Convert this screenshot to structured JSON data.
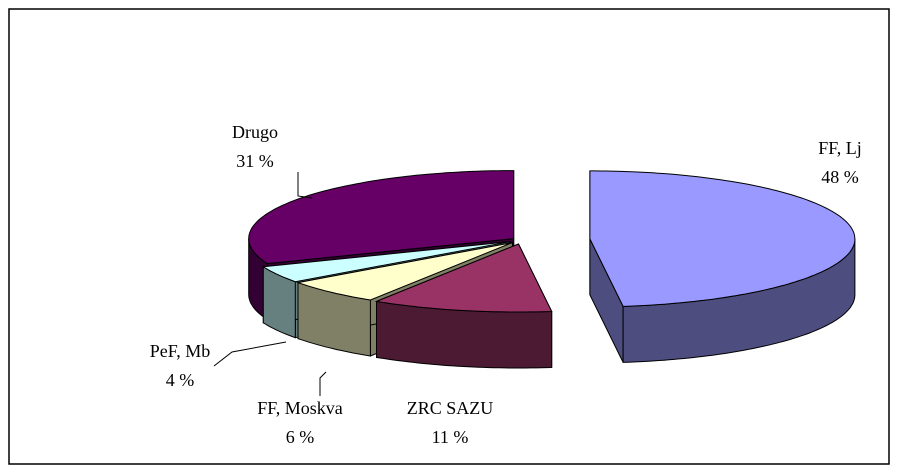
{
  "chart_data": {
    "type": "pie3d",
    "categories": [
      "FF, Lj",
      "ZRC SAZU",
      "FF, Moskva",
      "PeF, Mb",
      "Drugo"
    ],
    "values": [
      48,
      11,
      6,
      4,
      31
    ],
    "value_labels": [
      "48 %",
      "11 %",
      "6 %",
      "4 %",
      "31 %"
    ],
    "colors": [
      "#9999ff",
      "#993366",
      "#ffffcc",
      "#ccffff",
      "#660066"
    ]
  }
}
